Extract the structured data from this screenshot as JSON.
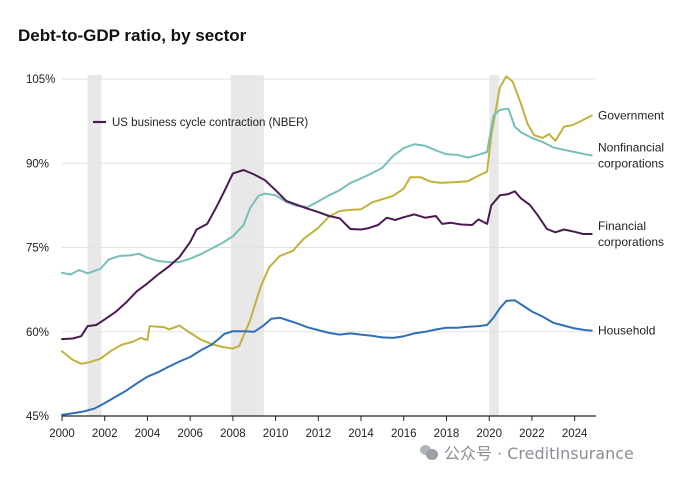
{
  "chart_data": {
    "type": "line",
    "title": "Debt-to-GDP ratio, by sector",
    "xlabel": "",
    "ylabel": "",
    "xlim": [
      2000,
      2025
    ],
    "ylim": [
      45,
      105
    ],
    "x_ticks": [
      "2000",
      "2002",
      "2004",
      "2006",
      "2008",
      "2010",
      "2012",
      "2014",
      "2016",
      "2018",
      "2020",
      "2022",
      "2024"
    ],
    "y_ticks": [
      "45%",
      "60%",
      "75%",
      "90%",
      "105%"
    ],
    "y_tick_values": [
      45,
      60,
      75,
      90,
      105
    ],
    "x_tick_values": [
      2000,
      2002,
      2004,
      2006,
      2008,
      2010,
      2012,
      2014,
      2016,
      2018,
      2020,
      2022,
      2024
    ],
    "grid": true,
    "legend": {
      "label": "US business cycle contraction (NBER)",
      "placement": "top-left"
    },
    "recessions": [
      {
        "start": 2001.2,
        "end": 2001.85
      },
      {
        "start": 2007.9,
        "end": 2009.45
      },
      {
        "start": 2020.0,
        "end": 2020.45
      }
    ],
    "series": [
      {
        "name": "Government",
        "color": "#c2b23c",
        "points": [
          [
            2000,
            56.5
          ],
          [
            2000.5,
            55
          ],
          [
            2000.9,
            54.3
          ],
          [
            2001.3,
            54.6
          ],
          [
            2001.8,
            55.2
          ],
          [
            2002.3,
            56.6
          ],
          [
            2002.8,
            57.7
          ],
          [
            2003.3,
            58.2
          ],
          [
            2003.7,
            58.9
          ],
          [
            2004.0,
            58.5
          ],
          [
            2004.1,
            61.0
          ],
          [
            2004.8,
            60.8
          ],
          [
            2005.0,
            60.4
          ],
          [
            2005.5,
            61.1
          ],
          [
            2006.0,
            59.8
          ],
          [
            2006.5,
            58.6
          ],
          [
            2007.0,
            57.8
          ],
          [
            2007.5,
            57.3
          ],
          [
            2008.0,
            57.0
          ],
          [
            2008.3,
            57.5
          ],
          [
            2008.8,
            62.0
          ],
          [
            2009.3,
            68.0
          ],
          [
            2009.7,
            71.5
          ],
          [
            2010.2,
            73.5
          ],
          [
            2010.8,
            74.4
          ],
          [
            2011.3,
            76.5
          ],
          [
            2012.0,
            78.5
          ],
          [
            2012.5,
            80.5
          ],
          [
            2013.0,
            81.5
          ],
          [
            2013.5,
            81.7
          ],
          [
            2014.0,
            81.8
          ],
          [
            2014.5,
            83.0
          ],
          [
            2015.0,
            83.6
          ],
          [
            2015.5,
            84.2
          ],
          [
            2016.0,
            85.5
          ],
          [
            2016.3,
            87.5
          ],
          [
            2016.8,
            87.5
          ],
          [
            2017.2,
            86.8
          ],
          [
            2017.7,
            86.5
          ],
          [
            2018.3,
            86.6
          ],
          [
            2019.0,
            86.8
          ],
          [
            2019.5,
            87.8
          ],
          [
            2019.9,
            88.5
          ],
          [
            2020.1,
            95.0
          ],
          [
            2020.5,
            103.5
          ],
          [
            2020.8,
            105.5
          ],
          [
            2021.1,
            104.5
          ],
          [
            2021.5,
            100.5
          ],
          [
            2021.8,
            97.0
          ],
          [
            2022.1,
            95.0
          ],
          [
            2022.5,
            94.5
          ],
          [
            2022.8,
            95.2
          ],
          [
            2023.1,
            94.0
          ],
          [
            2023.5,
            96.5
          ],
          [
            2023.9,
            96.8
          ],
          [
            2024.3,
            97.5
          ],
          [
            2024.8,
            98.5
          ]
        ]
      },
      {
        "name": "Nonfinancial corporations",
        "color": "#76bfba",
        "points": [
          [
            2000,
            70.5
          ],
          [
            2000.4,
            70.2
          ],
          [
            2000.8,
            71.0
          ],
          [
            2001.2,
            70.4
          ],
          [
            2001.8,
            71.2
          ],
          [
            2002.2,
            72.9
          ],
          [
            2002.7,
            73.5
          ],
          [
            2003.2,
            73.6
          ],
          [
            2003.6,
            73.9
          ],
          [
            2004.0,
            73.2
          ],
          [
            2004.5,
            72.6
          ],
          [
            2005.0,
            72.4
          ],
          [
            2005.5,
            72.4
          ],
          [
            2006.0,
            73.0
          ],
          [
            2006.5,
            73.8
          ],
          [
            2007.0,
            74.8
          ],
          [
            2007.5,
            75.8
          ],
          [
            2008.0,
            77.0
          ],
          [
            2008.5,
            79.0
          ],
          [
            2008.8,
            82.0
          ],
          [
            2009.2,
            84.2
          ],
          [
            2009.5,
            84.6
          ],
          [
            2010.0,
            84.3
          ],
          [
            2010.5,
            83.1
          ],
          [
            2011.0,
            82.4
          ],
          [
            2011.5,
            82.2
          ],
          [
            2012.0,
            83.2
          ],
          [
            2012.5,
            84.3
          ],
          [
            2013.0,
            85.2
          ],
          [
            2013.5,
            86.5
          ],
          [
            2014.0,
            87.3
          ],
          [
            2014.5,
            88.2
          ],
          [
            2015.0,
            89.2
          ],
          [
            2015.5,
            91.3
          ],
          [
            2016.0,
            92.7
          ],
          [
            2016.5,
            93.4
          ],
          [
            2017.0,
            93.1
          ],
          [
            2017.5,
            92.3
          ],
          [
            2018.0,
            91.6
          ],
          [
            2018.5,
            91.5
          ],
          [
            2019.0,
            91.0
          ],
          [
            2019.5,
            91.5
          ],
          [
            2019.9,
            92.0
          ],
          [
            2020.2,
            98.5
          ],
          [
            2020.5,
            99.5
          ],
          [
            2020.9,
            99.7
          ],
          [
            2021.2,
            96.5
          ],
          [
            2021.5,
            95.5
          ],
          [
            2022.0,
            94.5
          ],
          [
            2022.5,
            93.8
          ],
          [
            2023.0,
            92.8
          ],
          [
            2023.5,
            92.4
          ],
          [
            2024.0,
            92.0
          ],
          [
            2024.5,
            91.6
          ],
          [
            2024.8,
            91.4
          ]
        ]
      },
      {
        "name": "Financial corporations",
        "color": "#4b1a52",
        "points": [
          [
            2000,
            58.7
          ],
          [
            2000.5,
            58.8
          ],
          [
            2000.9,
            59.2
          ],
          [
            2001.2,
            61.0
          ],
          [
            2001.6,
            61.2
          ],
          [
            2002.0,
            62.2
          ],
          [
            2002.5,
            63.5
          ],
          [
            2003.0,
            65.2
          ],
          [
            2003.5,
            67.2
          ],
          [
            2004.0,
            68.6
          ],
          [
            2004.5,
            70.2
          ],
          [
            2005.0,
            71.6
          ],
          [
            2005.5,
            73.3
          ],
          [
            2006.0,
            76.0
          ],
          [
            2006.3,
            78.2
          ],
          [
            2006.8,
            79.2
          ],
          [
            2007.2,
            82.0
          ],
          [
            2007.6,
            85.0
          ],
          [
            2008.0,
            88.2
          ],
          [
            2008.5,
            88.8
          ],
          [
            2009.0,
            88.0
          ],
          [
            2009.5,
            87.0
          ],
          [
            2010.0,
            85.2
          ],
          [
            2010.5,
            83.3
          ],
          [
            2011.0,
            82.6
          ],
          [
            2011.5,
            81.9
          ],
          [
            2012.0,
            81.3
          ],
          [
            2012.5,
            80.6
          ],
          [
            2013.0,
            80.2
          ],
          [
            2013.5,
            78.3
          ],
          [
            2014.0,
            78.2
          ],
          [
            2014.3,
            78.4
          ],
          [
            2014.8,
            79.0
          ],
          [
            2015.2,
            80.3
          ],
          [
            2015.6,
            79.9
          ],
          [
            2016.0,
            80.4
          ],
          [
            2016.5,
            80.9
          ],
          [
            2017.0,
            80.3
          ],
          [
            2017.5,
            80.6
          ],
          [
            2017.8,
            79.2
          ],
          [
            2018.2,
            79.4
          ],
          [
            2018.7,
            79.1
          ],
          [
            2019.2,
            79.0
          ],
          [
            2019.5,
            80.0
          ],
          [
            2019.9,
            79.2
          ],
          [
            2020.1,
            82.5
          ],
          [
            2020.5,
            84.3
          ],
          [
            2020.9,
            84.5
          ],
          [
            2021.2,
            85.0
          ],
          [
            2021.5,
            83.7
          ],
          [
            2021.9,
            82.6
          ],
          [
            2022.3,
            80.6
          ],
          [
            2022.7,
            78.3
          ],
          [
            2023.1,
            77.7
          ],
          [
            2023.5,
            78.2
          ],
          [
            2024.0,
            77.8
          ],
          [
            2024.4,
            77.4
          ],
          [
            2024.8,
            77.4
          ]
        ]
      },
      {
        "name": "Household",
        "color": "#2f6fba",
        "points": [
          [
            2000,
            45.2
          ],
          [
            2000.5,
            45.5
          ],
          [
            2001.0,
            45.8
          ],
          [
            2001.5,
            46.3
          ],
          [
            2002.0,
            47.3
          ],
          [
            2002.5,
            48.4
          ],
          [
            2003.0,
            49.5
          ],
          [
            2003.5,
            50.8
          ],
          [
            2004.0,
            52.0
          ],
          [
            2004.5,
            52.8
          ],
          [
            2005.0,
            53.8
          ],
          [
            2005.5,
            54.7
          ],
          [
            2006.0,
            55.5
          ],
          [
            2006.5,
            56.7
          ],
          [
            2007.0,
            57.7
          ],
          [
            2007.3,
            58.6
          ],
          [
            2007.6,
            59.6
          ],
          [
            2008.0,
            60.1
          ],
          [
            2008.5,
            60.1
          ],
          [
            2009.0,
            60.0
          ],
          [
            2009.4,
            61.0
          ],
          [
            2009.8,
            62.3
          ],
          [
            2010.2,
            62.5
          ],
          [
            2010.6,
            62.0
          ],
          [
            2011.0,
            61.5
          ],
          [
            2011.5,
            60.8
          ],
          [
            2012.0,
            60.3
          ],
          [
            2012.5,
            59.8
          ],
          [
            2013.0,
            59.5
          ],
          [
            2013.5,
            59.7
          ],
          [
            2014.0,
            59.5
          ],
          [
            2014.5,
            59.3
          ],
          [
            2015.0,
            59.0
          ],
          [
            2015.5,
            58.9
          ],
          [
            2016.0,
            59.2
          ],
          [
            2016.5,
            59.7
          ],
          [
            2017.0,
            60.0
          ],
          [
            2017.5,
            60.4
          ],
          [
            2018.0,
            60.7
          ],
          [
            2018.5,
            60.7
          ],
          [
            2019.0,
            60.9
          ],
          [
            2019.5,
            61.0
          ],
          [
            2019.9,
            61.2
          ],
          [
            2020.2,
            62.5
          ],
          [
            2020.5,
            64.2
          ],
          [
            2020.8,
            65.5
          ],
          [
            2021.2,
            65.6
          ],
          [
            2021.6,
            64.6
          ],
          [
            2022.0,
            63.6
          ],
          [
            2022.5,
            62.7
          ],
          [
            2023.0,
            61.6
          ],
          [
            2023.5,
            61.1
          ],
          [
            2024.0,
            60.6
          ],
          [
            2024.5,
            60.3
          ],
          [
            2024.8,
            60.2
          ]
        ]
      }
    ],
    "series_labels": [
      {
        "series": "Government",
        "lines": [
          "Government"
        ],
        "y": 98.5
      },
      {
        "series": "Nonfinancial corporations",
        "lines": [
          "Nonfinancial",
          "corporations"
        ],
        "y": 91.4
      },
      {
        "series": "Financial corporations",
        "lines": [
          "Financial",
          "corporations"
        ],
        "y": 77.4
      },
      {
        "series": "Household",
        "lines": [
          "Household"
        ],
        "y": 60.2
      }
    ]
  },
  "watermark": {
    "text": "公众号 · CreditInsurance",
    "icon": "wechat-icon"
  }
}
